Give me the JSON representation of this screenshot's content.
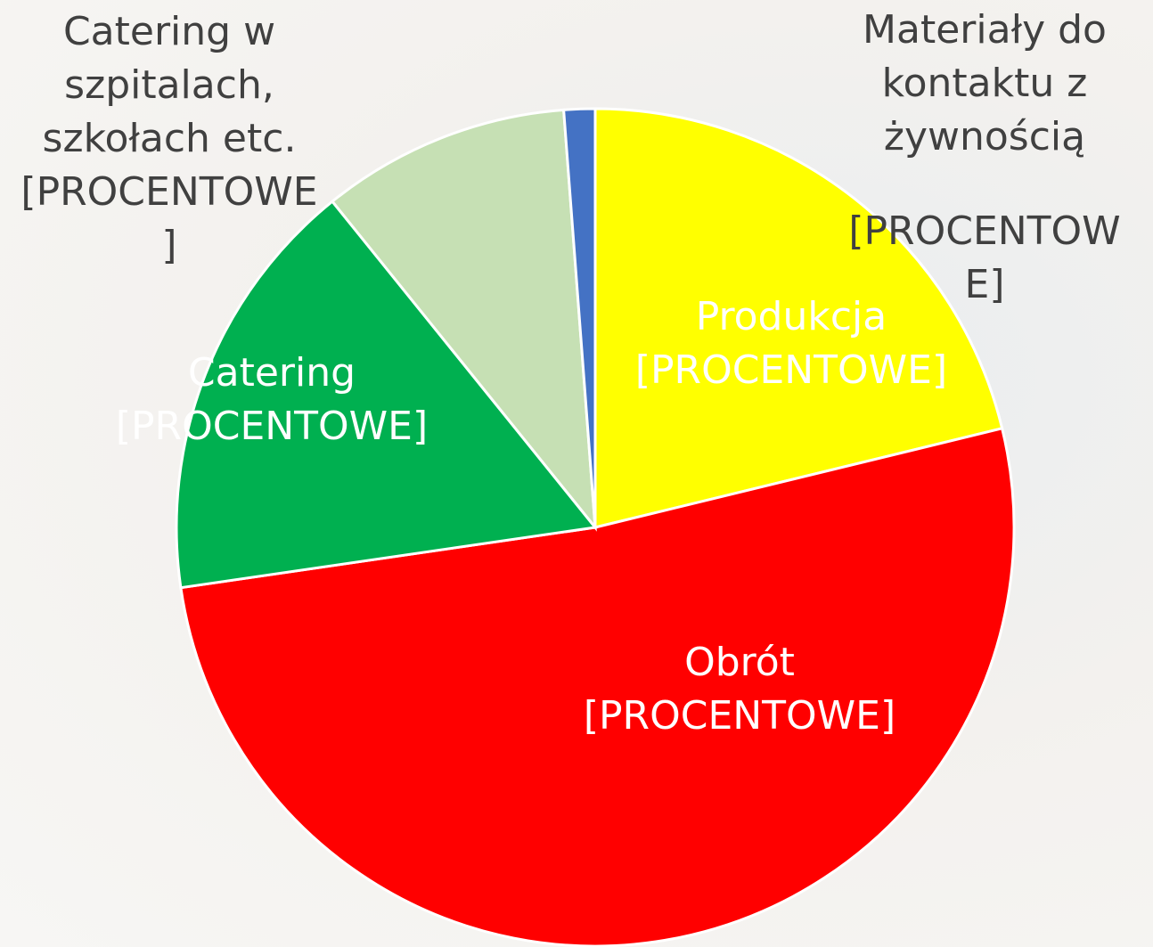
{
  "chart_data": {
    "type": "pie",
    "categories": [
      "Produkcja",
      "Obrót",
      "Catering",
      "Catering w szpitalach, szkołach etc.",
      "Materiały do kontaktu z żywnością"
    ],
    "values": [
      21.2,
      51.5,
      16.5,
      9.6,
      1.2
    ],
    "value_labels": [
      "[PROCENTOWE]",
      "[PROCENTOWE]",
      "[PROCENTOWE]",
      "[PROCENTOWE]",
      "[PROCENTOWE]"
    ],
    "colors": [
      "#ffff00",
      "#ff0000",
      "#00b050",
      "#c6e0b4",
      "#4472c4"
    ]
  }
}
